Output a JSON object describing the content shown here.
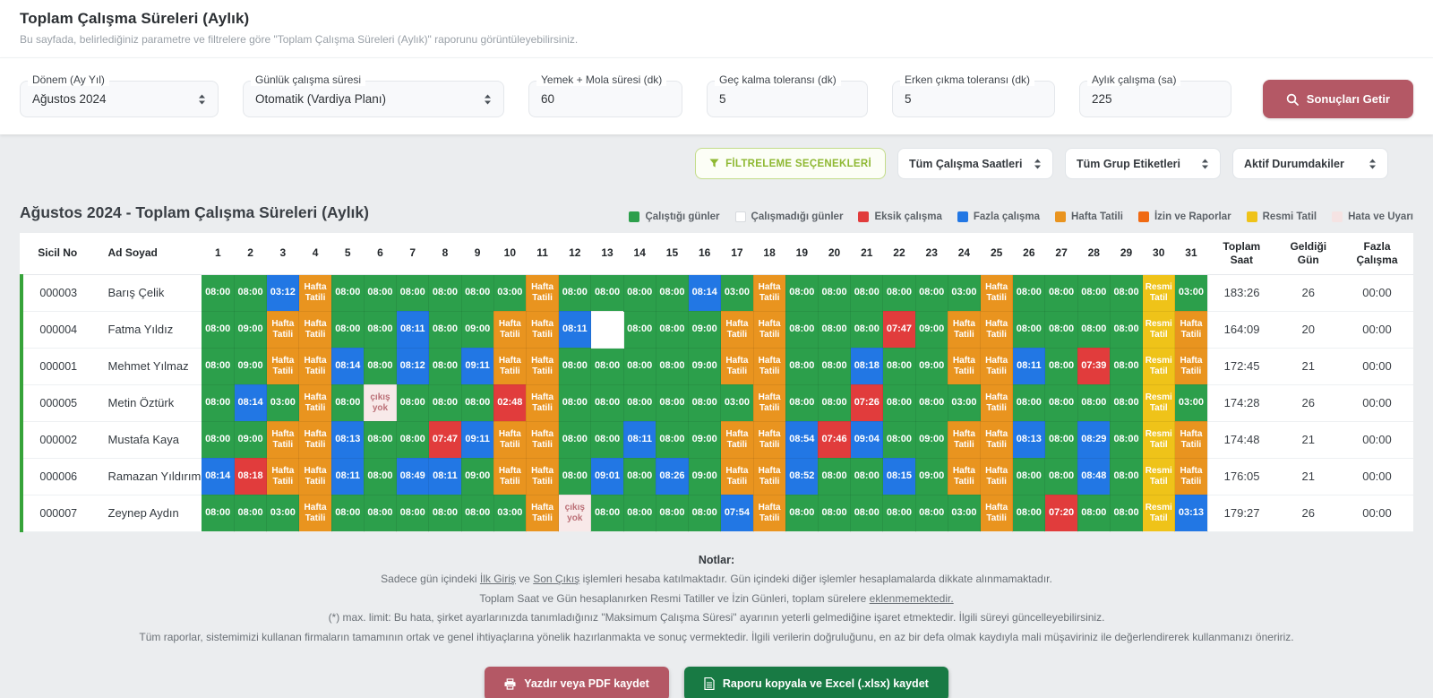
{
  "page": {
    "title": "Toplam Çalışma Süreleri (Aylık)",
    "subtitle": "Bu sayfada, belirlediğiniz parametre ve filtrelere göre \"Toplam Çalışma Süreleri (Aylık)\" raporunu görüntüleyebilirsiniz."
  },
  "filters": {
    "fields": [
      {
        "name": "period-select",
        "label": "Dönem (Ay Yıl)",
        "value": "Ağustos 2024",
        "type": "select"
      },
      {
        "name": "daily-duration-select",
        "label": "Günlük çalışma süresi",
        "value": "Otomatik (Vardiya Planı)",
        "type": "select"
      },
      {
        "name": "meal-break-input",
        "label": "Yemek + Mola süresi (dk)",
        "value": "60",
        "type": "input"
      },
      {
        "name": "late-tolerance-input",
        "label": "Geç kalma toleransı (dk)",
        "value": "5",
        "type": "input"
      },
      {
        "name": "early-leave-tolerance-input",
        "label": "Erken çıkma toleransı (dk)",
        "value": "5",
        "type": "input"
      },
      {
        "name": "monthly-hours-input",
        "label": "Aylık çalışma (sa)",
        "value": "225",
        "type": "input"
      }
    ],
    "submit_label": "Sonuçları Getir"
  },
  "toolbar": {
    "filter_options_label": "FİLTRELEME SEÇENEKLERİ",
    "selects": [
      {
        "name": "work-hours-filter",
        "value": "Tüm Çalışma Saatleri"
      },
      {
        "name": "group-tags-filter",
        "value": "Tüm Grup Etiketleri"
      },
      {
        "name": "status-filter",
        "value": "Aktif Durumdakiler"
      }
    ]
  },
  "report": {
    "title": "Ağustos 2024 - Toplam Çalışma Süreleri (Aylık)",
    "legend": [
      {
        "label": "Çalıştığı günler",
        "color": "#2c9f4b"
      },
      {
        "label": "Çalışmadığı günler",
        "color": "#ffffff"
      },
      {
        "label": "Eksik çalışma",
        "color": "#e13c3c"
      },
      {
        "label": "Fazla çalışma",
        "color": "#2277e4"
      },
      {
        "label": "Hafta Tatili",
        "color": "#e9941f"
      },
      {
        "label": "İzin ve Raporlar",
        "color": "#f06a12"
      },
      {
        "label": "Resmi Tatil",
        "color": "#efc319"
      },
      {
        "label": "Hata ve Uyarı",
        "color": "#f5e3e3"
      }
    ]
  },
  "table": {
    "headers": {
      "sicil": "Sicil No",
      "name": "Ad Soyad",
      "total_hours": "Toplam Saat",
      "days_present": "Geldiği Gün",
      "overtime": "Fazla Çalışma"
    },
    "day_numbers": [
      1,
      2,
      3,
      4,
      5,
      6,
      7,
      8,
      9,
      10,
      11,
      12,
      13,
      14,
      15,
      16,
      17,
      18,
      19,
      20,
      21,
      22,
      23,
      24,
      25,
      26,
      27,
      28,
      29,
      30,
      31
    ],
    "cell_labels": {
      "ht": "Hafta Tatili",
      "rt": "Resmi Tatil",
      "e": "çıkış yok"
    },
    "rows": [
      {
        "sicil": "000003",
        "name": "Barış Çelik",
        "days": [
          "g|08:00",
          "g|08:00",
          "b|03:12",
          "ht",
          "g|08:00",
          "g|08:00",
          "g|08:00",
          "g|08:00",
          "g|08:00",
          "g|03:00",
          "ht",
          "g|08:00",
          "g|08:00",
          "g|08:00",
          "g|08:00",
          "b|08:14",
          "g|03:00",
          "ht",
          "g|08:00",
          "g|08:00",
          "g|08:00",
          "g|08:00",
          "g|08:00",
          "g|03:00",
          "ht",
          "g|08:00",
          "g|08:00",
          "g|08:00",
          "g|08:00",
          "rt",
          "g|03:00"
        ],
        "total_hours": "183:26",
        "days_present": "26",
        "overtime": "00:00"
      },
      {
        "sicil": "000004",
        "name": "Fatma Yıldız",
        "days": [
          "g|08:00",
          "g|09:00",
          "ht",
          "ht",
          "g|08:00",
          "g|08:00",
          "b|08:11",
          "g|08:00",
          "g|09:00",
          "ht",
          "ht",
          "b|08:11",
          "w",
          "g|08:00",
          "g|08:00",
          "g|09:00",
          "ht",
          "ht",
          "g|08:00",
          "g|08:00",
          "g|08:00",
          "r|07:47",
          "g|09:00",
          "ht",
          "ht",
          "g|08:00",
          "g|08:00",
          "g|08:00",
          "g|08:00",
          "rt",
          "ht"
        ],
        "total_hours": "164:09",
        "days_present": "20",
        "overtime": "00:00"
      },
      {
        "sicil": "000001",
        "name": "Mehmet Yılmaz",
        "days": [
          "g|08:00",
          "g|09:00",
          "ht",
          "ht",
          "b|08:14",
          "g|08:00",
          "b|08:12",
          "g|08:00",
          "b|09:11",
          "ht",
          "ht",
          "g|08:00",
          "g|08:00",
          "g|08:00",
          "g|08:00",
          "g|09:00",
          "ht",
          "ht",
          "g|08:00",
          "g|08:00",
          "b|08:18",
          "g|08:00",
          "g|09:00",
          "ht",
          "ht",
          "b|08:11",
          "g|08:00",
          "r|07:39",
          "g|08:00",
          "rt",
          "ht"
        ],
        "total_hours": "172:45",
        "days_present": "21",
        "overtime": "00:00"
      },
      {
        "sicil": "000005",
        "name": "Metin Öztürk",
        "days": [
          "g|08:00",
          "b|08:14",
          "g|03:00",
          "ht",
          "g|08:00",
          "e",
          "g|08:00",
          "g|08:00",
          "g|08:00",
          "r|02:48",
          "ht",
          "g|08:00",
          "g|08:00",
          "g|08:00",
          "g|08:00",
          "g|08:00",
          "g|03:00",
          "ht",
          "g|08:00",
          "g|08:00",
          "r|07:26",
          "g|08:00",
          "g|08:00",
          "g|03:00",
          "ht",
          "g|08:00",
          "g|08:00",
          "g|08:00",
          "g|08:00",
          "rt",
          "g|03:00"
        ],
        "total_hours": "174:28",
        "days_present": "26",
        "overtime": "00:00"
      },
      {
        "sicil": "000002",
        "name": "Mustafa Kaya",
        "days": [
          "g|08:00",
          "g|09:00",
          "ht",
          "ht",
          "b|08:13",
          "g|08:00",
          "g|08:00",
          "r|07:47",
          "b|09:11",
          "ht",
          "ht",
          "g|08:00",
          "g|08:00",
          "b|08:11",
          "g|08:00",
          "g|09:00",
          "ht",
          "ht",
          "b|08:54",
          "r|07:46",
          "b|09:04",
          "g|08:00",
          "g|09:00",
          "ht",
          "ht",
          "b|08:13",
          "g|08:00",
          "b|08:29",
          "g|08:00",
          "rt",
          "ht"
        ],
        "total_hours": "174:48",
        "days_present": "21",
        "overtime": "00:00"
      },
      {
        "sicil": "000006",
        "name": "Ramazan Yıldırım",
        "days": [
          "b|08:14",
          "r|08:18",
          "ht",
          "ht",
          "b|08:11",
          "g|08:00",
          "b|08:49",
          "b|08:11",
          "g|09:00",
          "ht",
          "ht",
          "g|08:00",
          "b|09:01",
          "g|08:00",
          "b|08:26",
          "g|09:00",
          "ht",
          "ht",
          "b|08:52",
          "g|08:00",
          "g|08:00",
          "b|08:15",
          "g|09:00",
          "ht",
          "ht",
          "g|08:00",
          "g|08:00",
          "b|08:48",
          "g|08:00",
          "rt",
          "ht"
        ],
        "total_hours": "176:05",
        "days_present": "21",
        "overtime": "00:00"
      },
      {
        "sicil": "000007",
        "name": "Zeynep Aydın",
        "days": [
          "g|08:00",
          "g|08:00",
          "g|03:00",
          "ht",
          "g|08:00",
          "g|08:00",
          "g|08:00",
          "g|08:00",
          "g|08:00",
          "g|03:00",
          "ht",
          "e",
          "g|08:00",
          "g|08:00",
          "g|08:00",
          "g|08:00",
          "b|07:54",
          "ht",
          "g|08:00",
          "g|08:00",
          "g|08:00",
          "g|08:00",
          "g|08:00",
          "g|03:00",
          "ht",
          "g|08:00",
          "r|07:20",
          "g|08:00",
          "g|08:00",
          "rt",
          "b|03:13"
        ],
        "total_hours": "179:27",
        "days_present": "26",
        "overtime": "00:00"
      }
    ]
  },
  "notes": {
    "heading": "Notlar:",
    "lines": [
      [
        {
          "t": "Sadece gün içindeki "
        },
        {
          "t": "İlk Giriş",
          "u": true
        },
        {
          "t": " ve "
        },
        {
          "t": "Son Çıkış",
          "u": true
        },
        {
          "t": " işlemleri hesaba katılmaktadır. Gün içindeki diğer işlemler hesaplamalarda dikkate alınmamaktadır."
        }
      ],
      [
        {
          "t": "Toplam Saat ve Gün hesaplanırken Resmi Tatiller ve İzin Günleri, toplam sürelere "
        },
        {
          "t": "eklenmemektedir.",
          "u": true
        }
      ],
      [
        {
          "t": "(*) max. limit: Bu hata, şirket ayarlarınızda tanımladığınız \"Maksimum Çalışma Süresi\" ayarının yeterli gelmediğine işaret etmektedir. İlgili süreyi güncelleyebilirsiniz."
        }
      ],
      [
        {
          "t": "Tüm raporlar, sistemimizi kullanan firmaların tamamının ortak ve genel ihtiyaçlarına yönelik hazırlanmakta ve sonuç vermektedir. İlgili verilerin doğruluğunu, en az bir defa olmak kaydıyla mali müşaviriniz ile değerlendirerek kullanmanızı öneririz."
        }
      ]
    ]
  },
  "actions": {
    "print_label": "Yazdır veya PDF kaydet",
    "excel_label": "Raporu kopyala ve Excel (.xlsx) kaydet"
  }
}
